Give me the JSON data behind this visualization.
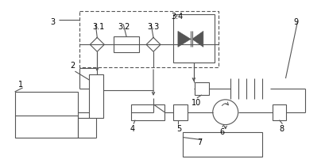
{
  "bg": "#ffffff",
  "lc": "#555555",
  "lw": 0.8,
  "fw": 4.1,
  "fh": 2.07,
  "dpi": 100,
  "fs": 7.0
}
